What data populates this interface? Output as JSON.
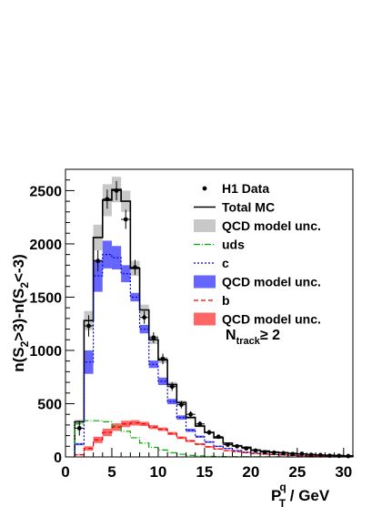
{
  "chart_data": {
    "type": "histogram",
    "ylabel": {
      "part1": "n(S",
      "sub1": "2",
      "part2": ">3)-n(S",
      "sub2": "2",
      "part3": "<-3)"
    },
    "xlabel": {
      "main": "P",
      "sup": "q",
      "sub": "T",
      "unit": " / GeV"
    },
    "xlim": [
      0,
      31
    ],
    "ylim": [
      0,
      2700
    ],
    "x_ticks": [
      0,
      5,
      10,
      15,
      20,
      25,
      30
    ],
    "y_ticks": [
      0,
      500,
      1000,
      1500,
      2000,
      2500
    ],
    "annotation": {
      "main": "N",
      "sub": "track",
      "rest": "≥ 2"
    },
    "bin_edges": [
      1,
      2,
      3,
      4,
      5,
      6,
      7,
      8,
      9,
      10,
      11,
      12,
      13,
      14,
      15,
      16,
      17,
      18,
      19,
      20,
      21,
      22,
      23,
      24,
      25,
      26,
      27,
      28,
      29,
      30,
      31
    ],
    "series": [
      {
        "name": "H1 Data",
        "style": "points",
        "color": "#000000",
        "x": [
          1.5,
          2.5,
          3.5,
          4.5,
          5.5,
          6.5,
          7.5,
          8.5,
          9.5,
          10.5,
          11.5,
          12.5,
          13.5,
          14.5,
          15.5,
          16.5,
          17.5,
          18.5,
          19.5,
          20.5,
          21.5,
          22.5,
          23.5,
          24.5,
          25.5,
          26.5,
          27.5,
          28.5,
          29.5,
          30.5
        ],
        "y": [
          270,
          1230,
          1840,
          2420,
          2500,
          2230,
          1780,
          1310,
          1120,
          920,
          660,
          490,
          400,
          310,
          230,
          190,
          115,
          100,
          80,
          60,
          45,
          40,
          35,
          28,
          30,
          20,
          18,
          12,
          10,
          8
        ],
        "err": [
          70,
          100,
          100,
          90,
          90,
          90,
          70,
          60,
          50,
          50,
          40,
          35,
          30,
          25,
          25,
          20,
          18,
          15,
          14,
          12,
          10,
          10,
          9,
          8,
          8,
          7,
          6,
          6,
          5,
          5
        ]
      },
      {
        "name": "Total MC",
        "style": "step",
        "color": "#000000",
        "values": [
          330,
          1280,
          2060,
          2410,
          2510,
          2400,
          1770,
          1380,
          1100,
          910,
          680,
          510,
          370,
          290,
          230,
          180,
          130,
          105,
          90,
          65,
          55,
          45,
          40,
          33,
          27,
          23,
          18,
          16,
          13,
          10
        ]
      },
      {
        "name": "QCD model unc.",
        "style": "band",
        "color": "#c8c8c8",
        "center": [
          330,
          1280,
          2060,
          2410,
          2510,
          2400,
          1770,
          1380,
          1100,
          910,
          680,
          510,
          370,
          290,
          230,
          180,
          130,
          105,
          90,
          65,
          55,
          45,
          40,
          33,
          27,
          23,
          18,
          16,
          13,
          10
        ],
        "halfwidth": [
          20,
          90,
          120,
          150,
          120,
          100,
          70,
          50,
          40,
          30,
          25,
          20,
          15,
          12,
          10,
          8,
          6,
          5,
          5,
          4,
          3,
          3,
          3,
          2,
          2,
          2,
          2,
          2,
          1,
          1
        ]
      },
      {
        "name": "uds",
        "style": "step",
        "dash": "7,2,1,2",
        "color": "#00aa00",
        "values": [
          310,
          340,
          340,
          330,
          290,
          240,
          180,
          130,
          90,
          65,
          40,
          25,
          15,
          10,
          6,
          5,
          3,
          2,
          2,
          1,
          1,
          1,
          1,
          0,
          0,
          0,
          0,
          0,
          0,
          0
        ]
      },
      {
        "name": "c",
        "style": "step",
        "dash": "2,2",
        "color": "#0000cc",
        "values": [
          120,
          890,
          1700,
          1900,
          1870,
          1720,
          1500,
          1200,
          870,
          710,
          520,
          370,
          250,
          190,
          140,
          100,
          80,
          60,
          45,
          35,
          28,
          22,
          18,
          14,
          11,
          9,
          7,
          5,
          4,
          3
        ]
      },
      {
        "name": "QCD model unc.",
        "style": "band",
        "color": "#6666ff",
        "center": [
          120,
          890,
          1700,
          1900,
          1870,
          1720,
          1500,
          1200,
          870,
          710,
          520,
          370,
          250,
          190,
          140,
          100,
          80,
          60,
          45,
          35,
          28,
          22,
          18,
          14,
          11,
          9,
          7,
          5,
          4,
          3
        ],
        "halfwidth": [
          10,
          110,
          150,
          130,
          110,
          80,
          40,
          40,
          35,
          35,
          25,
          20,
          15,
          10,
          8,
          6,
          5,
          4,
          3,
          3,
          2,
          2,
          2,
          1,
          1,
          1,
          1,
          1,
          1,
          1
        ]
      },
      {
        "name": "b",
        "style": "step",
        "dash": "5,3",
        "color": "#ee0000",
        "values": [
          20,
          80,
          160,
          230,
          280,
          310,
          320,
          310,
          280,
          260,
          220,
          180,
          150,
          120,
          95,
          75,
          60,
          50,
          40,
          32,
          27,
          22,
          18,
          15,
          12,
          10,
          8,
          7,
          6,
          5
        ]
      },
      {
        "name": "QCD model unc.",
        "style": "band",
        "color": "#ff6666",
        "center": [
          20,
          80,
          160,
          230,
          280,
          310,
          320,
          310,
          280,
          260,
          220,
          180,
          150,
          120,
          95,
          75,
          60,
          50,
          40,
          32,
          27,
          22,
          18,
          15,
          12,
          10,
          8,
          7,
          6,
          5
        ],
        "halfwidth": [
          5,
          20,
          30,
          35,
          35,
          30,
          25,
          20,
          18,
          16,
          14,
          12,
          10,
          9,
          8,
          6,
          5,
          4,
          4,
          3,
          3,
          2,
          2,
          2,
          2,
          1,
          1,
          1,
          1,
          1
        ]
      }
    ]
  }
}
